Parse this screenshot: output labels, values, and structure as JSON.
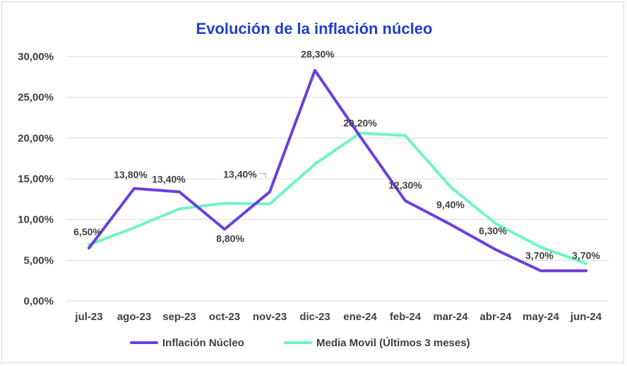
{
  "chart_data": {
    "type": "line",
    "title": "Evolución de la inflación núcleo",
    "categories": [
      "jul-23",
      "ago-23",
      "sep-23",
      "oct-23",
      "nov-23",
      "dic-23",
      "ene-24",
      "feb-24",
      "mar-24",
      "abr-24",
      "may-24",
      "jun-24"
    ],
    "ylim": [
      0,
      30
    ],
    "yticks": [
      "0,00%",
      "5,00%",
      "10,00%",
      "15,00%",
      "20,00%",
      "25,00%",
      "30,00%"
    ],
    "grid": true,
    "legend_position": "bottom",
    "series": [
      {
        "name": "Inflación Núcleo",
        "color": "#6a3fe0",
        "values": [
          6.5,
          13.8,
          13.4,
          8.8,
          13.4,
          28.3,
          20.2,
          12.3,
          9.4,
          6.3,
          3.7,
          3.7
        ],
        "labels": [
          "6,50%",
          "13,80%",
          "13,40%",
          "8,80%",
          "13,40%",
          "28,30%",
          "20,20%",
          "12,30%",
          "9,40%",
          "6,30%",
          "3,70%",
          "3,70%"
        ]
      },
      {
        "name": "Media Movil (Últimos 3 meses)",
        "color": "#6ff5c4",
        "values": [
          6.9,
          9.0,
          11.3,
          12.0,
          11.9,
          16.8,
          20.6,
          20.3,
          14.0,
          9.5,
          6.6,
          4.6
        ]
      }
    ]
  },
  "colors": {
    "title": "#1f3fd0",
    "grid": "#d9d9d9",
    "text": "#404040"
  }
}
